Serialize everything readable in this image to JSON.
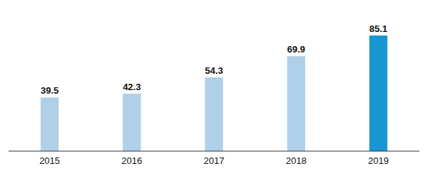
{
  "chart_data": {
    "type": "bar",
    "categories": [
      "2015",
      "2016",
      "2017",
      "2018",
      "2019"
    ],
    "values": [
      39.5,
      42.3,
      54.3,
      69.9,
      85.1
    ],
    "colors": [
      "#b0cfe8",
      "#b0cfe8",
      "#b0cfe8",
      "#b0cfe8",
      "#1a96d4"
    ],
    "ylim": [
      0,
      105
    ],
    "data_labels": true,
    "tick_labels": "x"
  }
}
